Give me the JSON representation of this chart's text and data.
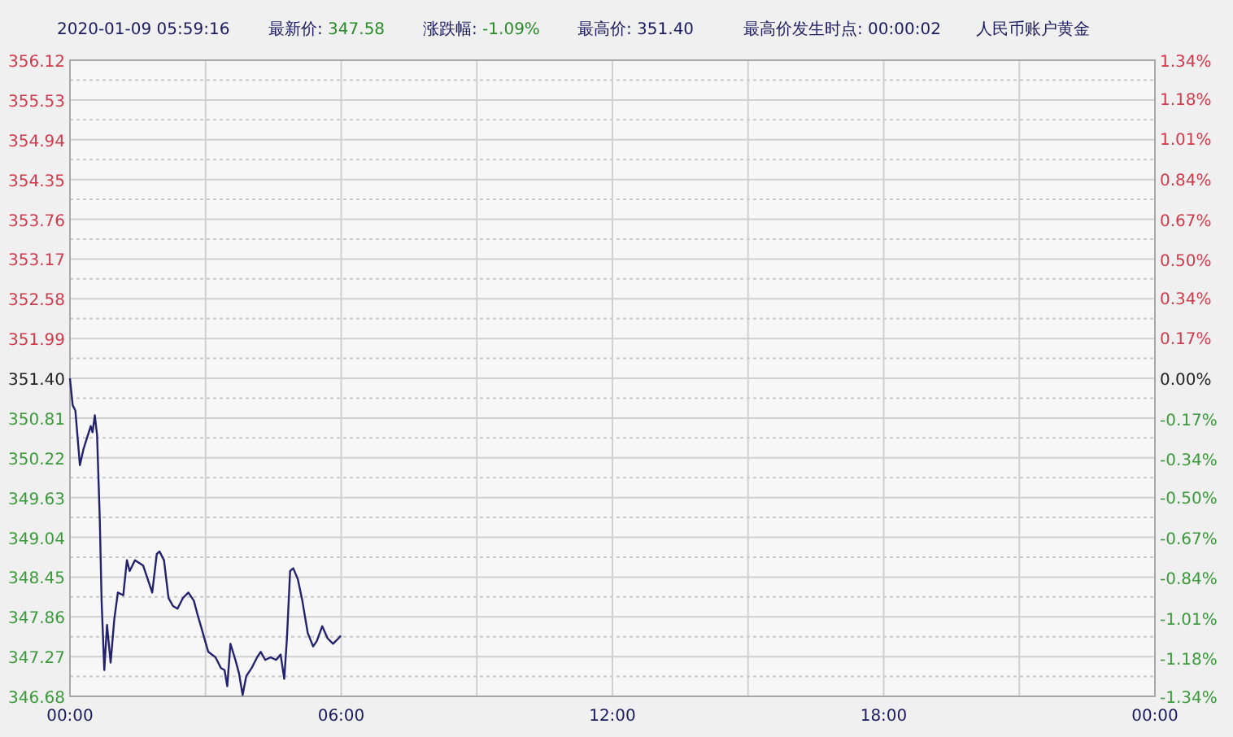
{
  "chart_data": {
    "type": "line",
    "title": "人民币账户黄金",
    "subtitle": "2020-01-09 05:59:16",
    "annotations": [
      "最新价: 347.58",
      "涨跌幅: -1.09%",
      "最高价: 351.40",
      "最高价发生时点: 00:00:02"
    ],
    "x": [
      0,
      0.06,
      0.12,
      0.22,
      0.3,
      0.46,
      0.5,
      0.55,
      0.6,
      0.66,
      0.7,
      0.76,
      0.82,
      0.9,
      0.98,
      1.06,
      1.18,
      1.26,
      1.32,
      1.44,
      1.62,
      1.74,
      1.82,
      1.92,
      1.98,
      2.08,
      2.18,
      2.28,
      2.38,
      2.5,
      2.62,
      2.74,
      2.82,
      2.94,
      3.06,
      3.22,
      3.34,
      3.42,
      3.48,
      3.55,
      3.66,
      3.74,
      3.82,
      3.9,
      4.02,
      4.14,
      4.22,
      4.32,
      4.44,
      4.56,
      4.66,
      4.74,
      4.8,
      4.87,
      4.94,
      5.04,
      5.14,
      5.26,
      5.38,
      5.46,
      5.58,
      5.7,
      5.82,
      5.94,
      5.99
    ],
    "series": [
      {
        "color": "#22226e",
        "values": [
          351.4,
          351.0,
          350.92,
          350.11,
          350.35,
          350.69,
          350.6,
          350.85,
          350.56,
          349.31,
          348.1,
          347.07,
          347.74,
          347.18,
          347.82,
          348.22,
          348.18,
          348.7,
          348.54,
          348.7,
          348.62,
          348.38,
          348.22,
          348.79,
          348.83,
          348.7,
          348.14,
          348.02,
          347.98,
          348.14,
          348.22,
          348.1,
          347.9,
          347.62,
          347.34,
          347.26,
          347.1,
          347.07,
          346.83,
          347.46,
          347.22,
          347.02,
          346.7,
          346.98,
          347.1,
          347.26,
          347.34,
          347.22,
          347.26,
          347.22,
          347.3,
          346.94,
          347.54,
          348.54,
          348.58,
          348.42,
          348.1,
          347.62,
          347.42,
          347.5,
          347.72,
          347.54,
          347.46,
          347.54,
          347.58
        ]
      }
    ],
    "xlim": [
      0,
      24
    ],
    "xticks": [
      {
        "value": 0,
        "label": "00:00"
      },
      {
        "value": 3,
        "label": null
      },
      {
        "value": 6,
        "label": "06:00"
      },
      {
        "value": 9,
        "label": null
      },
      {
        "value": 12,
        "label": "12:00"
      },
      {
        "value": 15,
        "label": null
      },
      {
        "value": 18,
        "label": "18:00"
      },
      {
        "value": 21,
        "label": null
      },
      {
        "value": 24,
        "label": "00:00"
      }
    ],
    "ylim": [
      346.68,
      356.12
    ],
    "yticks": [
      346.68,
      347.27,
      347.86,
      348.45,
      349.04,
      349.63,
      350.22,
      350.81,
      {
        "value": 351.4,
        "label": "351.40"
      },
      351.99,
      352.58,
      353.17,
      353.76,
      354.35,
      354.94,
      355.53,
      356.12
    ],
    "y2lim": [
      -1.34,
      1.34
    ],
    "y2ticks": [
      {
        "value": -1.34,
        "label": "-1.34%"
      },
      {
        "value": -1.18,
        "label": "-1.18%"
      },
      {
        "value": -1.01,
        "label": "-1.01%"
      },
      {
        "value": -0.84,
        "label": "-0.84%"
      },
      {
        "value": -0.67,
        "label": "-0.67%"
      },
      {
        "value": -0.5,
        "label": "-0.50%"
      },
      {
        "value": -0.34,
        "label": "-0.34%"
      },
      {
        "value": -0.17,
        "label": "-0.17%"
      },
      {
        "value": 0,
        "label": "0.00%"
      },
      {
        "value": 0.17,
        "label": "0.17%"
      },
      {
        "value": 0.34,
        "label": "0.34%"
      },
      {
        "value": 0.5,
        "label": "0.50%"
      },
      {
        "value": 0.67,
        "label": "0.67%"
      },
      {
        "value": 0.84,
        "label": "0.84%"
      },
      {
        "value": 1.01,
        "label": "1.01%"
      },
      {
        "value": 1.18,
        "label": "1.18%"
      },
      {
        "value": 1.34,
        "label": "1.34%"
      }
    ],
    "grid": true
  }
}
